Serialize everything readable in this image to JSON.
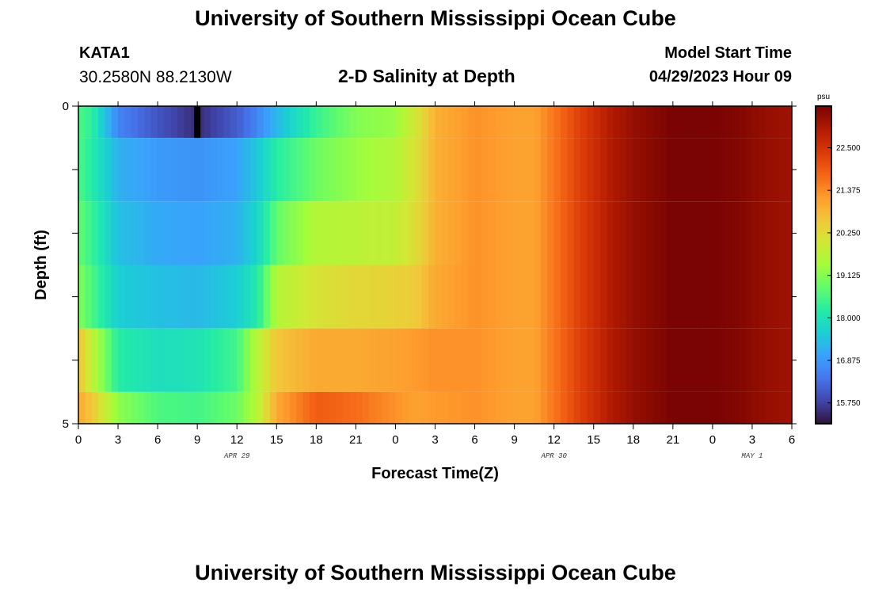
{
  "header": {
    "title": "University of Southern Mississippi Ocean Cube",
    "station": "KATA1",
    "coords": "30.2580N  88.2130W",
    "plot_title": "2-D Salinity at Depth",
    "model_start_label": "Model Start Time",
    "model_start_value": "04/29/2023 Hour 09"
  },
  "footer": {
    "title": "University of Southern Mississippi Ocean Cube"
  },
  "colors": {
    "colormap": [
      "#30123b",
      "#4145ab",
      "#4675ed",
      "#39a2fc",
      "#1bcfd4",
      "#24eca6",
      "#61fc6c",
      "#a4fc3b",
      "#d1e834",
      "#f3c63a",
      "#fe9b2d",
      "#f36315",
      "#d93806",
      "#b11901",
      "#7a0403"
    ]
  },
  "chart_data": {
    "type": "heatmap",
    "title": "2-D Salinity at Depth",
    "xlabel": "Forecast Time(Z)",
    "ylabel": "Depth (ft)",
    "x_hours": [
      0,
      3,
      6,
      9,
      12,
      15,
      18,
      21,
      24,
      27,
      30,
      33,
      36,
      39,
      42,
      45,
      48,
      51,
      54
    ],
    "x_tick_labels": [
      "0",
      "3",
      "6",
      "9",
      "12",
      "15",
      "18",
      "21",
      "0",
      "3",
      "6",
      "9",
      "12",
      "15",
      "18",
      "21",
      "0",
      "3",
      "6"
    ],
    "day_labels": [
      {
        "label": "APR 29",
        "hour": 12
      },
      {
        "label": "APR 30",
        "hour": 36
      },
      {
        "label": "MAY 1",
        "hour": 51
      }
    ],
    "y_tick_labels": [
      "0",
      "5"
    ],
    "ylim": [
      0,
      5
    ],
    "depths": [
      0,
      1,
      2,
      3,
      4,
      5
    ],
    "colorbar": {
      "unit": "psu",
      "min": 15.2,
      "max": 23.6,
      "ticks": [
        "15.750",
        "16.875",
        "18.000",
        "19.125",
        "20.250",
        "21.375",
        "22.500"
      ]
    },
    "time_anchors": [
      0,
      1,
      3,
      6,
      9,
      12,
      13.5,
      15,
      18,
      21,
      24,
      25.5,
      27,
      30,
      33,
      34.5,
      36,
      38,
      40,
      42,
      45,
      48,
      50,
      52,
      54
    ],
    "salinity_by_depth": [
      [
        18.6,
        18.3,
        16.6,
        16.0,
        15.5,
        16.1,
        16.6,
        17.3,
        18.4,
        19.1,
        19.3,
        20.0,
        20.9,
        21.3,
        21.1,
        21.1,
        21.6,
        22.3,
        22.9,
        23.3,
        23.6,
        23.6,
        23.5,
        23.3,
        23.2
      ],
      [
        18.6,
        18.2,
        17.2,
        16.9,
        16.8,
        17.0,
        17.5,
        18.2,
        18.9,
        19.3,
        19.6,
        20.1,
        20.9,
        21.3,
        21.1,
        21.1,
        21.6,
        22.3,
        22.9,
        23.3,
        23.6,
        23.6,
        23.5,
        23.3,
        23.2
      ],
      [
        18.8,
        18.4,
        17.4,
        17.1,
        17.0,
        17.2,
        17.7,
        18.8,
        19.6,
        19.7,
        19.8,
        20.2,
        20.9,
        21.3,
        21.1,
        21.1,
        21.6,
        22.3,
        22.9,
        23.3,
        23.6,
        23.6,
        23.5,
        23.3,
        23.2
      ],
      [
        19.1,
        18.6,
        17.6,
        17.4,
        17.3,
        17.6,
        18.1,
        19.6,
        20.1,
        20.3,
        20.4,
        20.5,
        21.0,
        21.3,
        21.1,
        21.1,
        21.6,
        22.3,
        22.9,
        23.3,
        23.6,
        23.6,
        23.5,
        23.3,
        23.2
      ],
      [
        20.6,
        19.8,
        18.2,
        17.9,
        18.0,
        18.5,
        19.6,
        20.6,
        21.0,
        21.0,
        21.1,
        21.2,
        21.3,
        21.3,
        21.1,
        21.1,
        21.6,
        22.3,
        22.9,
        23.3,
        23.6,
        23.6,
        23.5,
        23.3,
        23.2
      ],
      [
        21.0,
        20.6,
        19.2,
        18.6,
        18.5,
        18.9,
        19.6,
        21.0,
        21.9,
        21.7,
        21.3,
        21.1,
        21.2,
        21.3,
        21.1,
        21.1,
        21.6,
        22.3,
        22.9,
        23.3,
        23.6,
        23.6,
        23.5,
        23.3,
        23.2
      ]
    ]
  }
}
